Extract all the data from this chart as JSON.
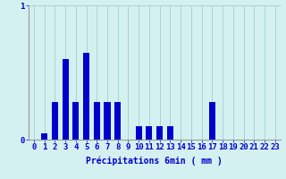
{
  "categories": [
    0,
    1,
    2,
    3,
    4,
    5,
    6,
    7,
    8,
    9,
    10,
    11,
    12,
    13,
    14,
    15,
    16,
    17,
    18,
    19,
    20,
    21,
    22,
    23
  ],
  "values": [
    0.0,
    0.05,
    0.28,
    0.6,
    0.28,
    0.65,
    0.28,
    0.28,
    0.28,
    0.0,
    0.1,
    0.1,
    0.1,
    0.1,
    0.0,
    0.0,
    0.0,
    0.28,
    0.0,
    0.0,
    0.0,
    0.0,
    0.0,
    0.0
  ],
  "bar_color": "#0000cc",
  "bg_color": "#d4f0f0",
  "grid_color": "#aad4d4",
  "text_color": "#0000cc",
  "xlabel": "Précipitations 6min ( mm )",
  "ylim": [
    0,
    1.0
  ],
  "yticks": [
    0,
    1
  ],
  "label_fontsize": 7,
  "tick_fontsize": 6.5
}
